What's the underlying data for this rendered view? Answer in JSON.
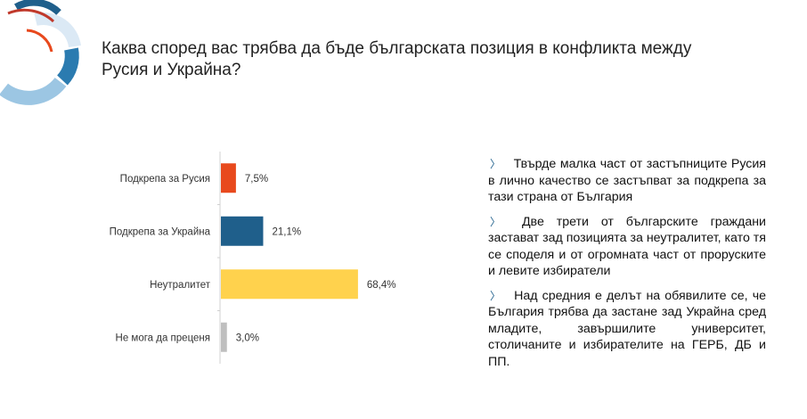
{
  "title": "Каква според вас трябва да бъде българската позиция в конфликта между Русия и Украйна?",
  "chart_data": {
    "type": "bar",
    "orientation": "horizontal",
    "categories": [
      "Подкрепа за Русия",
      "Подкрепа за Украйна",
      "Неутралитет",
      "Не мога да преценя"
    ],
    "values": [
      7.5,
      21.1,
      68.4,
      3.0
    ],
    "labels": [
      "7,5%",
      "21,1%",
      "68,4%",
      "3,0%"
    ],
    "colors": [
      "#e8491d",
      "#1f5f8b",
      "#ffd24d",
      "#bfbfbf"
    ],
    "xlim": [
      0,
      100
    ],
    "title": "",
    "xlabel": "",
    "ylabel": ""
  },
  "bullets": [
    "Твърде малка част от застъпниците Русия в лично качество се застъпват за подкрепа за тази страна от България",
    "Две трети от българските граждани застават зад позицията за неутралитет, като тя се споделя и от огромната част от проруските и левите избиратели",
    "Над средния е делът на обявилите се, че България трябва да застане зад Украйна сред младите, завършилите университет, столичаните и избирателите на ГЕРБ, ДБ и ПП."
  ],
  "bullet_marker": "〉"
}
